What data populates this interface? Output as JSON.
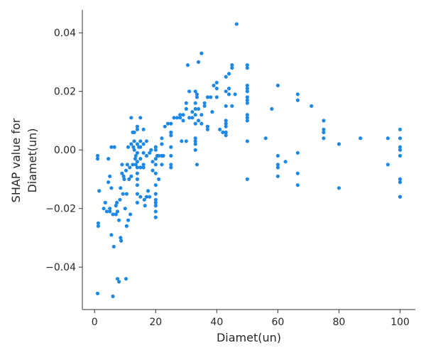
{
  "chart_data": {
    "type": "scatter",
    "title": "",
    "xlabel": "Diamet(un)",
    "ylabel_lines": [
      "SHAP value for",
      "Diamet(un)"
    ],
    "xlim": [
      -4,
      105
    ],
    "ylim": [
      -0.0545,
      0.0478
    ],
    "x_ticks": [
      0,
      20,
      40,
      60,
      80,
      100
    ],
    "y_ticks": [
      -0.04,
      -0.02,
      0.0,
      0.02,
      0.04
    ],
    "y_tick_labels": [
      "−0.04",
      "−0.02",
      "0.00",
      "0.02",
      "0.04"
    ],
    "x_tick_labels": [
      "0",
      "20",
      "40",
      "60",
      "80",
      "100"
    ],
    "point_color": "#1e88e5",
    "points": [
      [
        1,
        -0.002
      ],
      [
        1,
        -0.003
      ],
      [
        1.2,
        -0.025
      ],
      [
        1.2,
        -0.026
      ],
      [
        1,
        -0.049
      ],
      [
        1.5,
        -0.014
      ],
      [
        3,
        -0.02
      ],
      [
        3.5,
        -0.018
      ],
      [
        4,
        -0.021
      ],
      [
        4.5,
        -0.011
      ],
      [
        4.5,
        -0.003
      ],
      [
        5,
        -0.009
      ],
      [
        5,
        -0.021
      ],
      [
        5.5,
        -0.013
      ],
      [
        5.5,
        -0.029
      ],
      [
        5,
        -0.02
      ],
      [
        5.5,
        0.001
      ],
      [
        6,
        -0.05
      ],
      [
        6,
        -0.022
      ],
      [
        6.3,
        -0.033
      ],
      [
        6.5,
        0.001
      ],
      [
        7,
        -0.022
      ],
      [
        7,
        -0.019
      ],
      [
        7.3,
        -0.018
      ],
      [
        7.5,
        -0.044
      ],
      [
        7.5,
        -0.021
      ],
      [
        8,
        -0.045
      ],
      [
        8,
        -0.024
      ],
      [
        8.3,
        -0.017
      ],
      [
        8.5,
        -0.013
      ],
      [
        8.5,
        -0.03
      ],
      [
        8.7,
        -0.031
      ],
      [
        9,
        -0.005
      ],
      [
        9,
        -0.008
      ],
      [
        9.3,
        -0.015
      ],
      [
        9.5,
        -0.009
      ],
      [
        9.7,
        -0.01
      ],
      [
        10,
        -0.02
      ],
      [
        10.3,
        -0.044
      ],
      [
        10.3,
        -0.007
      ],
      [
        10.5,
        -0.015
      ],
      [
        10.5,
        -0.026
      ],
      [
        10.7,
        -0.005
      ],
      [
        11,
        0.001
      ],
      [
        11,
        -0.024
      ],
      [
        11.3,
        -0.01
      ],
      [
        11.5,
        -0.006
      ],
      [
        11.7,
        -0.022
      ],
      [
        12,
        0.011
      ],
      [
        12,
        0.002
      ],
      [
        12,
        -0.009
      ],
      [
        12.5,
        0.006
      ],
      [
        12.5,
        -0.005
      ],
      [
        12.7,
        0.001
      ],
      [
        13,
        0.006
      ],
      [
        13,
        0.003
      ],
      [
        13,
        0.0
      ],
      [
        13.3,
        -0.003
      ],
      [
        13.5,
        -0.002
      ],
      [
        13.5,
        -0.005
      ],
      [
        14,
        0.008
      ],
      [
        14,
        0.007
      ],
      [
        14,
        0.002
      ],
      [
        14,
        -0.001
      ],
      [
        14,
        -0.004
      ],
      [
        14,
        -0.006
      ],
      [
        14,
        -0.008
      ],
      [
        14,
        -0.01
      ],
      [
        14,
        -0.012
      ],
      [
        14,
        -0.015
      ],
      [
        14,
        -0.018
      ],
      [
        14.5,
        0.001
      ],
      [
        15,
        0.011
      ],
      [
        15,
        0.003
      ],
      [
        15,
        0.001
      ],
      [
        15,
        -0.003
      ],
      [
        15,
        -0.006
      ],
      [
        15,
        -0.016
      ],
      [
        16,
        0.007
      ],
      [
        16,
        0.002
      ],
      [
        16,
        -0.001
      ],
      [
        16,
        -0.005
      ],
      [
        16,
        -0.006
      ],
      [
        16.3,
        -0.017
      ],
      [
        16.5,
        -0.019
      ],
      [
        17,
        0.003
      ],
      [
        17,
        -0.002
      ],
      [
        17,
        -0.016
      ],
      [
        17.5,
        -0.014
      ],
      [
        18,
        -0.001
      ],
      [
        18,
        -0.016
      ],
      [
        18.5,
        0.0
      ],
      [
        19,
        -0.004
      ],
      [
        19,
        -0.007
      ],
      [
        20,
        0.001
      ],
      [
        20,
        -0.003
      ],
      [
        20,
        -0.005
      ],
      [
        20,
        -0.008
      ],
      [
        20,
        -0.012
      ],
      [
        20,
        -0.015
      ],
      [
        20,
        -0.017
      ],
      [
        20,
        -0.018
      ],
      [
        20,
        -0.019
      ],
      [
        20,
        -0.021
      ],
      [
        20,
        -0.023
      ],
      [
        20,
        -0.0
      ],
      [
        20.5,
        -0.002
      ],
      [
        21,
        -0.002
      ],
      [
        21,
        -0.01
      ],
      [
        22,
        0.004
      ],
      [
        22,
        0.002
      ],
      [
        22,
        -0.002
      ],
      [
        22,
        -0.005
      ],
      [
        22.5,
        -0.002
      ],
      [
        23,
        0.008
      ],
      [
        24,
        0.009
      ],
      [
        25,
        0.009
      ],
      [
        25,
        0.006
      ],
      [
        25,
        0.005
      ],
      [
        25,
        0.001
      ],
      [
        25,
        -0.002
      ],
      [
        25,
        -0.005
      ],
      [
        25,
        -0.006
      ],
      [
        26,
        0.011
      ],
      [
        27,
        0.011
      ],
      [
        28,
        0.011
      ],
      [
        28,
        0.012
      ],
      [
        28.5,
        0.003
      ],
      [
        29,
        0.01
      ],
      [
        29,
        0.012
      ],
      [
        30,
        0.014
      ],
      [
        30,
        0.016
      ],
      [
        30,
        0.003
      ],
      [
        30.5,
        0.029
      ],
      [
        31,
        0.02
      ],
      [
        31,
        0.011
      ],
      [
        32,
        0.013
      ],
      [
        32,
        0.011
      ],
      [
        33,
        0.02
      ],
      [
        33,
        0.016
      ],
      [
        33,
        0.014
      ],
      [
        33,
        0.012
      ],
      [
        33,
        0.009
      ],
      [
        33,
        0.004
      ],
      [
        33,
        0.003
      ],
      [
        33,
        0.002
      ],
      [
        33,
        0.0
      ],
      [
        33.5,
        0.019
      ],
      [
        33.5,
        0.018
      ],
      [
        33.5,
        -0.005
      ],
      [
        34,
        0.03
      ],
      [
        34,
        0.014
      ],
      [
        34,
        0.01
      ],
      [
        35,
        0.033
      ],
      [
        35,
        0.012
      ],
      [
        35,
        0.009
      ],
      [
        36,
        0.016
      ],
      [
        36,
        0.015
      ],
      [
        37,
        0.018
      ],
      [
        37,
        0.008
      ],
      [
        37,
        0.007
      ],
      [
        37,
        0.008
      ],
      [
        38,
        0.018
      ],
      [
        38.5,
        0.013
      ],
      [
        39,
        0.022
      ],
      [
        40,
        0.023
      ],
      [
        40,
        0.021
      ],
      [
        40,
        0.018
      ],
      [
        41,
        0.007
      ],
      [
        42,
        0.006
      ],
      [
        43,
        0.025
      ],
      [
        43,
        0.02
      ],
      [
        43,
        0.015
      ],
      [
        43,
        0.01
      ],
      [
        43,
        0.009
      ],
      [
        43,
        0.008
      ],
      [
        43,
        0.006
      ],
      [
        43,
        0.005
      ],
      [
        44,
        0.026
      ],
      [
        44,
        0.021
      ],
      [
        44,
        0.019
      ],
      [
        45,
        0.029
      ],
      [
        45,
        0.028
      ],
      [
        45,
        0.015
      ],
      [
        46,
        0.019
      ],
      [
        46.5,
        0.043
      ],
      [
        50,
        0.029
      ],
      [
        50,
        0.028
      ],
      [
        50,
        0.022
      ],
      [
        50,
        0.021
      ],
      [
        50,
        0.02
      ],
      [
        50,
        0.018
      ],
      [
        50,
        0.017
      ],
      [
        50,
        0.016
      ],
      [
        50,
        0.012
      ],
      [
        50,
        0.011
      ],
      [
        50,
        0.01
      ],
      [
        50,
        0.003
      ],
      [
        50,
        -0.01
      ],
      [
        56,
        0.004
      ],
      [
        58,
        0.014
      ],
      [
        60,
        0.022
      ],
      [
        60,
        -0.002
      ],
      [
        60,
        -0.005
      ],
      [
        60,
        -0.006
      ],
      [
        60,
        -0.009
      ],
      [
        62.5,
        -0.004
      ],
      [
        66.5,
        0.019
      ],
      [
        66.5,
        0.017
      ],
      [
        66.5,
        -0.001
      ],
      [
        66.5,
        -0.008
      ],
      [
        66.5,
        -0.012
      ],
      [
        71,
        0.015
      ],
      [
        75,
        0.01
      ],
      [
        75,
        0.007
      ],
      [
        75,
        0.006
      ],
      [
        75,
        0.004
      ],
      [
        80,
        0.002
      ],
      [
        80,
        -0.013
      ],
      [
        87,
        0.004
      ],
      [
        96,
        0.004
      ],
      [
        96,
        -0.005
      ],
      [
        100,
        0.007
      ],
      [
        100,
        0.004
      ],
      [
        100,
        0.001
      ],
      [
        100,
        0.0
      ],
      [
        100,
        -0.002
      ],
      [
        100,
        -0.01
      ],
      [
        100,
        -0.011
      ],
      [
        100,
        -0.016
      ],
      [
        100,
        -0.016
      ]
    ]
  }
}
